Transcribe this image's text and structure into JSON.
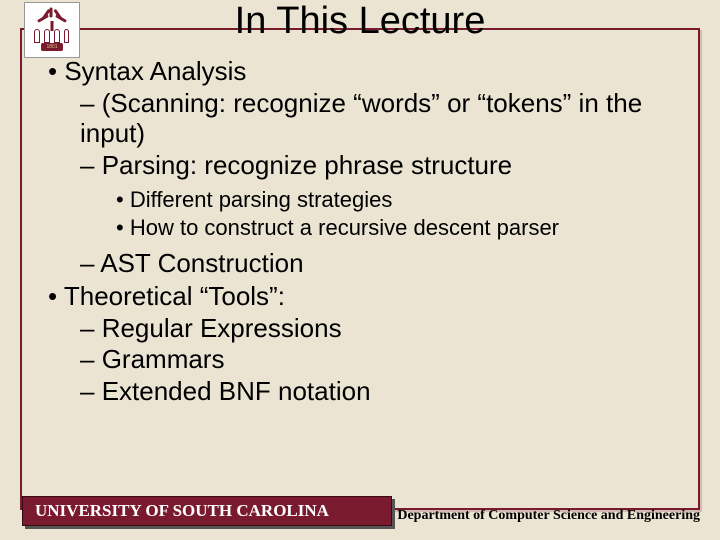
{
  "logo": {
    "year": "1801"
  },
  "title": "In This Lecture",
  "bullets": {
    "b1": "Syntax Analysis",
    "b1a": "(Scanning: recognize “words” or “tokens” in the input)",
    "b1b": "Parsing: recognize phrase structure",
    "b1b_i": "Different parsing strategies",
    "b1b_ii": "How to construct a recursive descent parser",
    "b1c": "AST Construction",
    "b2": "Theoretical “Tools”:",
    "b2a": "Regular Expressions",
    "b2b": "Grammars",
    "b2c": "Extended BNF notation"
  },
  "footer": {
    "left": "UNIVERSITY OF SOUTH CAROLINA",
    "right": "Department of Computer Science and Engineering"
  },
  "colors": {
    "background": "#ebe4d3",
    "accent": "#7a1a2e",
    "text": "#000000",
    "footer_text": "#ffffff"
  }
}
